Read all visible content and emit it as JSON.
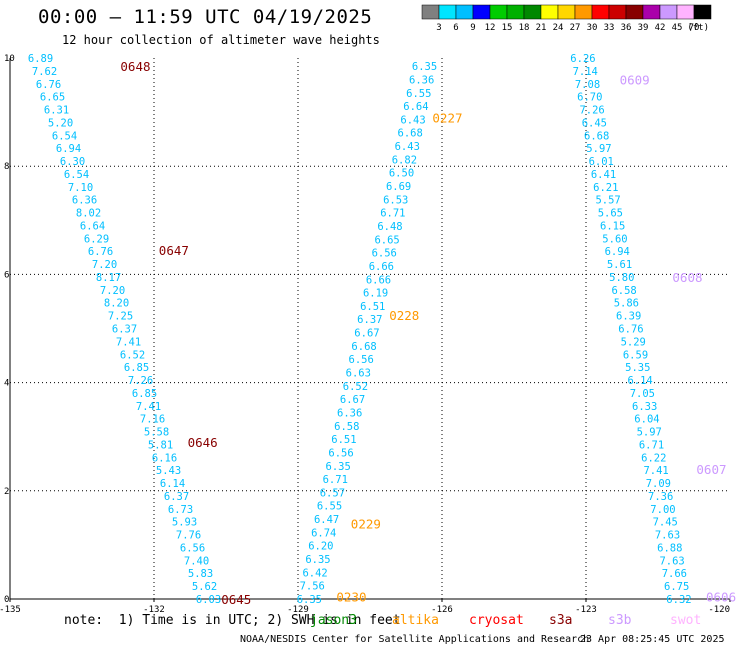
{
  "header": {
    "title": "00:00 – 11:59 UTC 04/19/2025",
    "subtitle": "12 hour collection of altimeter wave heights"
  },
  "legend": {
    "unit": "(ft)",
    "bins": [
      {
        "label": "3",
        "color": "#808080"
      },
      {
        "label": "6",
        "color": "#00e5ff"
      },
      {
        "label": "9",
        "color": "#00bfff"
      },
      {
        "label": "12",
        "color": "#0000ff"
      },
      {
        "label": "15",
        "color": "#00cc00"
      },
      {
        "label": "18",
        "color": "#00b000"
      },
      {
        "label": "21",
        "color": "#008800"
      },
      {
        "label": "24",
        "color": "#ffff00"
      },
      {
        "label": "27",
        "color": "#ffd700"
      },
      {
        "label": "30",
        "color": "#ff9900"
      },
      {
        "label": "33",
        "color": "#ff0000"
      },
      {
        "label": "36",
        "color": "#cc0000"
      },
      {
        "label": "39",
        "color": "#880000"
      },
      {
        "label": "42",
        "color": "#aa00aa"
      },
      {
        "label": "45",
        "color": "#cc99ff"
      },
      {
        "label": "70",
        "color": "#ffb3ff"
      },
      {
        "label": "",
        "color": "#000000"
      }
    ]
  },
  "footer": {
    "note": "note:  1) Time is in UTC; 2) SWH is in feet",
    "credit": "NOAA/NESDIS Center for Satellite Applications and Research",
    "timestamp": "23 Apr 08:25:45 UTC 2025",
    "missions": [
      {
        "name": "jason3",
        "color": "#008800"
      },
      {
        "name": "altika",
        "color": "#ff9900"
      },
      {
        "name": "cryosat",
        "color": "#ff0000"
      },
      {
        "name": "s3a",
        "color": "#880000"
      },
      {
        "name": "s3b",
        "color": "#cc99ff"
      },
      {
        "name": "swot",
        "color": "#ffb3ff"
      }
    ]
  },
  "chart_data": {
    "type": "scatter",
    "title": "00:00 – 11:59 UTC 04/19/2025",
    "xlim": [
      -135,
      -120
    ],
    "ylim": [
      0,
      10
    ],
    "xticks": [
      "-135",
      "-132",
      "-129",
      "-126",
      "-123",
      "-120"
    ],
    "yticks": [
      "0",
      "2",
      "4",
      "6",
      "8",
      "10"
    ],
    "grid": true,
    "value_color": "#00bfff",
    "tracks": [
      {
        "mission": "s3a",
        "color": "#880000",
        "x_start": -134.1,
        "x_end": -130.6,
        "y_start": 10.0,
        "y_end": 0.0,
        "values": [
          "6.89",
          "7.62",
          "6.76",
          "6.65",
          "6.31",
          "5.20",
          "6.54",
          "6.94",
          "6.30",
          "6.54",
          "7.10",
          "6.36",
          "8.02",
          "6.64",
          "6.29",
          "6.76",
          "7.20",
          "8.17",
          "7.20",
          "8.20",
          "7.25",
          "6.37",
          "7.41",
          "6.52",
          "6.85",
          "7.26",
          "6.85",
          "7.41",
          "7.16",
          "5.58",
          "5.81",
          "6.16",
          "5.43",
          "6.14",
          "6.37",
          "6.73",
          "5.93",
          "7.76",
          "6.56",
          "7.40",
          "5.83",
          "5.62",
          "6.03"
        ],
        "time_labels": [
          {
            "time": "0648",
            "y": 9.85,
            "x": -132.7
          },
          {
            "time": "0647",
            "y": 6.45,
            "x": -131.9
          },
          {
            "time": "0646",
            "y": 2.9,
            "x": -131.3
          },
          {
            "time": "0645",
            "y": 0.0,
            "x": -130.6
          }
        ]
      },
      {
        "mission": "altika",
        "color": "#ff9900",
        "x_start": -126.1,
        "x_end": -128.5,
        "y_start": 9.85,
        "y_end": 0.0,
        "values": [
          "6.35",
          "6.36",
          "6.55",
          "6.64",
          "6.43",
          "6.68",
          "6.43",
          "6.82",
          "6.50",
          "6.69",
          "6.53",
          "6.71",
          "6.48",
          "6.65",
          "6.56",
          "6.66",
          "6.66",
          "6.19",
          "6.51",
          "6.37",
          "6.67",
          "6.68",
          "6.56",
          "6.63",
          "6.52",
          "6.67",
          "6.36",
          "6.58",
          "6.51",
          "6.56",
          "6.35",
          "6.71",
          "6.57",
          "6.55",
          "6.47",
          "6.74",
          "6.20",
          "6.35",
          "6.42",
          "7.56",
          "6.35"
        ],
        "time_labels": [
          {
            "time": "0227",
            "y": 8.9,
            "x": -126.2
          },
          {
            "time": "0228",
            "y": 5.25,
            "x": -127.1
          },
          {
            "time": "0229",
            "y": 1.4,
            "x": -127.9
          },
          {
            "time": "0230",
            "y": 0.05,
            "x": -128.2
          }
        ]
      },
      {
        "mission": "s3b",
        "color": "#cc99ff",
        "x_start": -122.8,
        "x_end": -120.8,
        "y_start": 10.0,
        "y_end": 0.0,
        "values": [
          "6.26",
          "7.14",
          "7.08",
          "6.70",
          "7.26",
          "6.45",
          "6.68",
          "5.97",
          "6.01",
          "6.41",
          "6.21",
          "5.57",
          "5.65",
          "6.15",
          "5.60",
          "6.94",
          "5.61",
          "5.80",
          "6.58",
          "5.86",
          "6.39",
          "6.76",
          "5.29",
          "6.59",
          "5.35",
          "6.14",
          "7.05",
          "6.33",
          "6.04",
          "5.97",
          "6.71",
          "6.22",
          "7.41",
          "7.09",
          "7.36",
          "7.00",
          "7.45",
          "7.63",
          "6.88",
          "7.63",
          "7.66",
          "6.75",
          "6.32"
        ],
        "time_labels": [
          {
            "time": "0609",
            "y": 9.6,
            "x": -122.3
          },
          {
            "time": "0608",
            "y": 5.95,
            "x": -121.2
          },
          {
            "time": "0607",
            "y": 2.4,
            "x": -120.7
          },
          {
            "time": "0606",
            "y": 0.05,
            "x": -120.5
          }
        ]
      }
    ]
  }
}
